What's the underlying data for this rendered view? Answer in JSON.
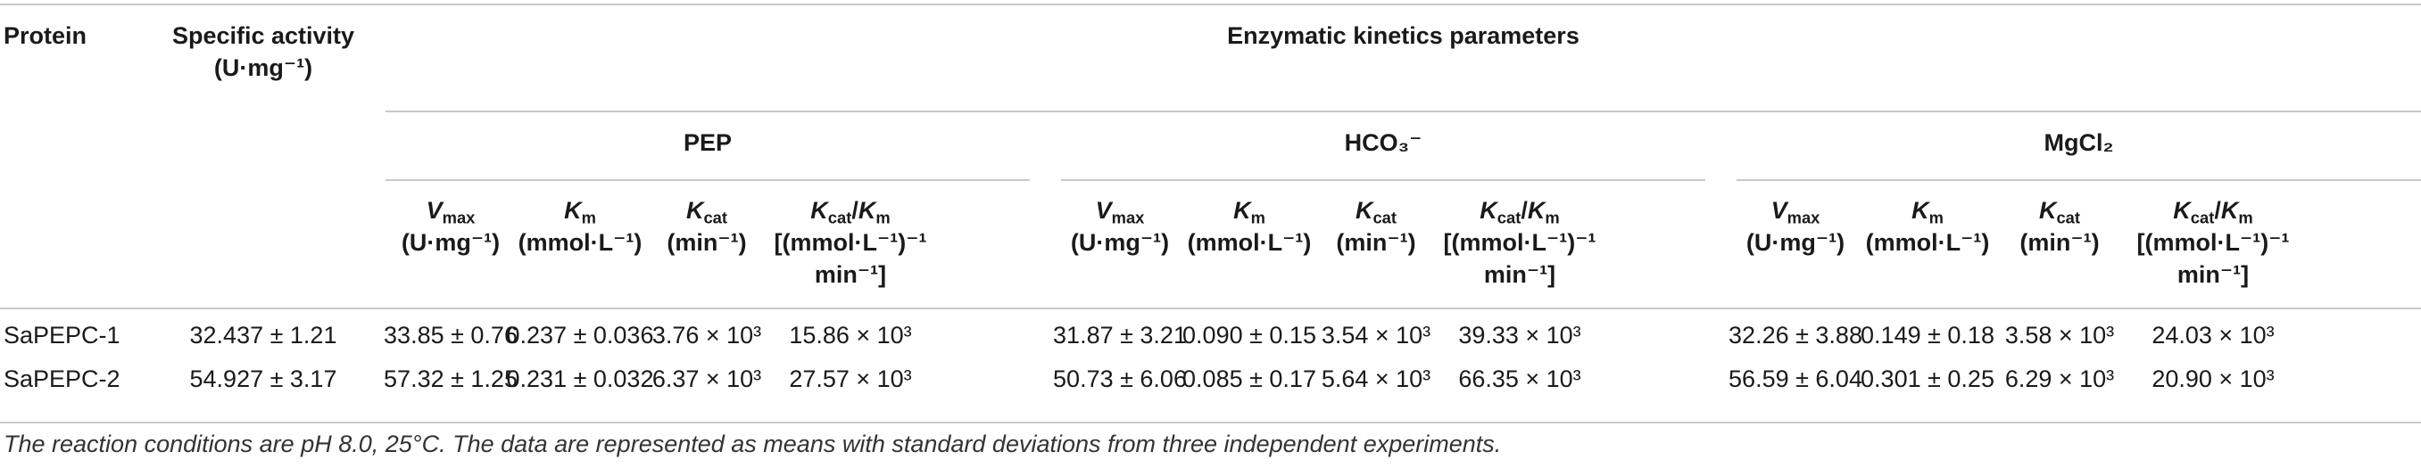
{
  "header": {
    "protein": "Protein",
    "specific_activity": "Specific activity",
    "specific_activity_unit": "(U·mg⁻¹)",
    "group": "Enzymatic kinetics parameters",
    "substrates": [
      "PEP",
      "HCO₃⁻",
      "MgCl₂"
    ],
    "params": [
      {
        "sym": "V",
        "sub": "max",
        "unit": "(U·mg⁻¹)"
      },
      {
        "sym": "K",
        "sub": "m",
        "unit": "(mmol·L⁻¹)"
      },
      {
        "sym": "K",
        "sub": "cat",
        "unit": "(min⁻¹)"
      },
      {
        "sym": "Kcat/Km",
        "unit": "[(mmol·L⁻¹)⁻¹",
        "unit2": "min⁻¹]"
      }
    ]
  },
  "rows": [
    {
      "protein": "SaPEPC-1",
      "specific_activity": "32.437 ± 1.21",
      "values": [
        "33.85 ± 0.76",
        "0.237 ± 0.036",
        "3.76 × 10³",
        "15.86 × 10³",
        "31.87 ± 3.21",
        "0.090 ± 0.15",
        "3.54 × 10³",
        "39.33 × 10³",
        "32.26 ± 3.88",
        "0.149 ± 0.18",
        "3.58 × 10³",
        "24.03 × 10³"
      ]
    },
    {
      "protein": "SaPEPC-2",
      "specific_activity": "54.927 ± 3.17",
      "values": [
        "57.32 ± 1.25",
        "0.231 ± 0.032",
        "6.37 × 10³",
        "27.57 × 10³",
        "50.73 ± 6.06",
        "0.085 ± 0.17",
        "5.64 × 10³",
        "66.35 × 10³",
        "56.59 ± 6.04",
        "0.301 ± 0.25",
        "6.29 × 10³",
        "20.90 × 10³"
      ]
    }
  ],
  "footnote": "The reaction conditions are pH 8.0, 25°C. The data are represented as means with standard deviations from three independent experiments."
}
